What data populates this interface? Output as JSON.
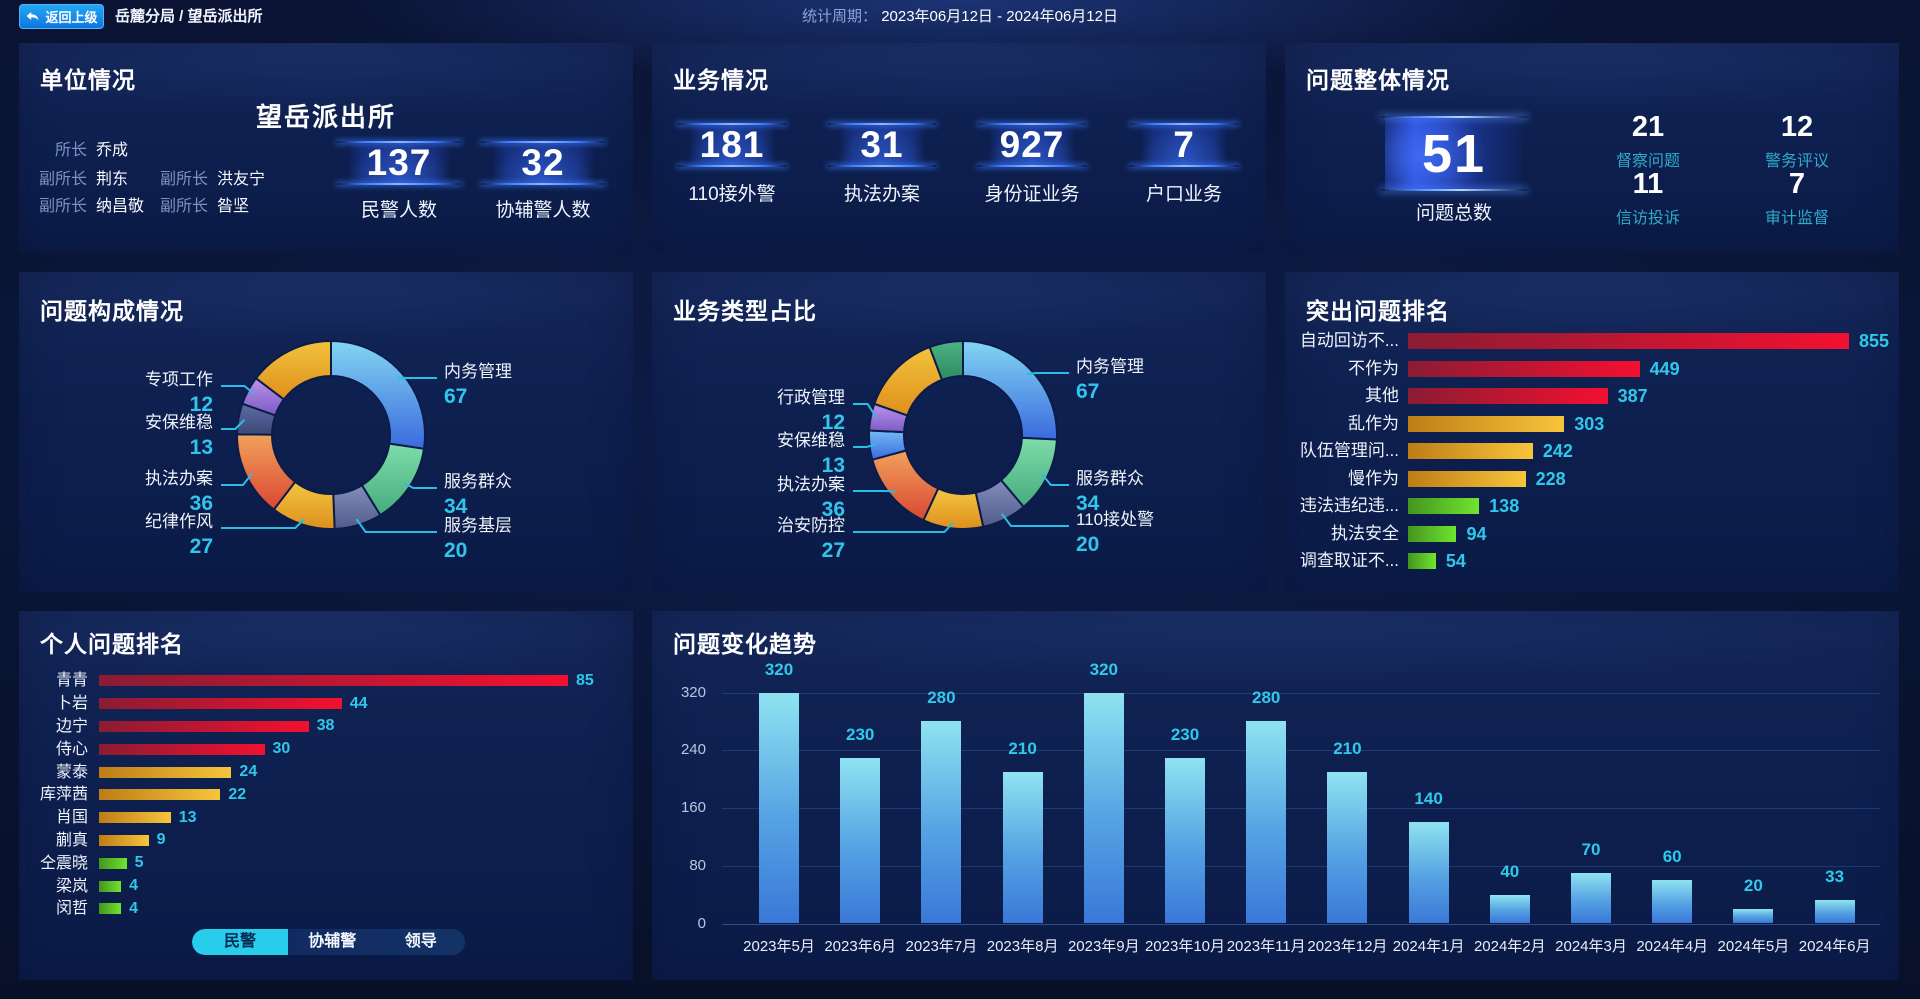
{
  "header": {
    "back_button": "返回上级",
    "breadcrumb": "岳麓分局 / 望岳派出所",
    "period_label": "统计周期：",
    "period_value": "2023年06月12日 - 2024年06月12日"
  },
  "unit_panel": {
    "title": "单位情况",
    "unit_name": "望岳派出所",
    "roster": [
      {
        "role": "所长",
        "name": "乔成"
      },
      {
        "role": "副所长",
        "name": "荆东"
      },
      {
        "role": "副所长",
        "name": "洪友宁"
      },
      {
        "role": "副所长",
        "name": "纳昌敬"
      },
      {
        "role": "副所长",
        "name": "昝坚"
      }
    ],
    "stats": [
      {
        "value": "137",
        "label": "民警人数"
      },
      {
        "value": "32",
        "label": "协辅警人数"
      }
    ]
  },
  "business_panel": {
    "title": "业务情况",
    "stats": [
      {
        "value": "181",
        "label": "110接外警"
      },
      {
        "value": "31",
        "label": "执法办案"
      },
      {
        "value": "927",
        "label": "身份证业务"
      },
      {
        "value": "7",
        "label": "户口业务"
      }
    ]
  },
  "problem_overview_panel": {
    "title": "问题整体情况",
    "total": {
      "value": "51",
      "label": "问题总数"
    },
    "substats": [
      {
        "value": "21",
        "label": "督察问题"
      },
      {
        "value": "12",
        "label": "警务评议"
      },
      {
        "value": "11",
        "label": "信访投诉"
      },
      {
        "value": "7",
        "label": "审计监督"
      }
    ]
  },
  "personal_panel_tabs": [
    {
      "label": "民警",
      "active": true
    },
    {
      "label": "协辅警",
      "active": false
    },
    {
      "label": "领导",
      "active": false
    }
  ],
  "chart_data": [
    {
      "id": "problem_composition",
      "type": "pie",
      "title": "问题构成情况",
      "legend_position": "none",
      "center": [
        312,
        163
      ],
      "outer_radius": 94,
      "inner_radius": 59,
      "segments": [
        {
          "name": "内务管理",
          "value": 67,
          "colors": [
            "#83d6f2",
            "#3a6ade"
          ],
          "side": "right",
          "labelY": 106
        },
        {
          "name": "服务群众",
          "value": 34,
          "colors": [
            "#7fdcab",
            "#45ab7d"
          ],
          "side": "right",
          "labelY": 216
        },
        {
          "name": "服务基层",
          "value": 20,
          "colors": [
            "#828dbb",
            "#525c8c"
          ],
          "side": "right",
          "labelY": 260
        },
        {
          "name": "纪律作风",
          "value": 27,
          "colors": [
            "#f4c641",
            "#de8f1d"
          ],
          "side": "left",
          "labelY": 256
        },
        {
          "name": "执法办案",
          "value": 36,
          "colors": [
            "#f2a15c",
            "#d94732"
          ],
          "side": "left",
          "labelY": 213
        },
        {
          "name": "安保维稳",
          "value": 13,
          "colors": [
            "#5d6ba6",
            "#3c4976"
          ],
          "side": "left",
          "labelY": 157
        },
        {
          "name": "专项工作",
          "value": 12,
          "colors": [
            "#bd92ea",
            "#7b5bc6"
          ],
          "side": "left",
          "labelY": 114
        },
        {
          "name": "",
          "value": 36,
          "label_hidden": true,
          "colors": [
            "#f2c33c",
            "#df8f1c"
          ]
        }
      ]
    },
    {
      "id": "business_type_share",
      "type": "pie",
      "title": "业务类型占比",
      "legend_position": "none",
      "center": [
        311,
        163
      ],
      "outer_radius": 94,
      "inner_radius": 59,
      "segments": [
        {
          "name": "内务管理",
          "value": 67,
          "colors": [
            "#83d6f2",
            "#3a6ade"
          ],
          "side": "right",
          "labelY": 101
        },
        {
          "name": "服务群众",
          "value": 34,
          "colors": [
            "#7fdcab",
            "#45ab7d"
          ],
          "side": "right",
          "labelY": 213
        },
        {
          "name": "110接处警",
          "value": 20,
          "colors": [
            "#828dbb",
            "#525c8c"
          ],
          "side": "right",
          "labelY": 254
        },
        {
          "name": "治安防控",
          "value": 27,
          "colors": [
            "#f4c641",
            "#de8f1d"
          ],
          "side": "left",
          "labelY": 260
        },
        {
          "name": "执法办案",
          "value": 36,
          "colors": [
            "#f2a15c",
            "#d94732"
          ],
          "side": "left",
          "labelY": 219
        },
        {
          "name": "安保维稳",
          "value": 13,
          "colors": [
            "#74bbf4",
            "#3a6ade"
          ],
          "side": "left",
          "labelY": 175
        },
        {
          "name": "行政管理",
          "value": 12,
          "colors": [
            "#bd92ea",
            "#7b5bc6"
          ],
          "side": "left",
          "labelY": 132
        },
        {
          "name": "",
          "value": 36,
          "label_hidden": true,
          "colors": [
            "#f2c33c",
            "#df8f1c"
          ]
        },
        {
          "name": "",
          "value": 15,
          "label_hidden": true,
          "colors": [
            "#4bb183",
            "#2e8c61"
          ]
        }
      ]
    },
    {
      "id": "prominent_problem_ranking",
      "type": "bar",
      "orientation": "horizontal",
      "title": "突出问题排名",
      "categories": [
        "自动回访不...",
        "不作为",
        "其他",
        "乱作为",
        "队伍管理问...",
        "慢作为",
        "违法违纪违...",
        "执法安全",
        "调查取证不..."
      ],
      "values": [
        855,
        449,
        387,
        303,
        242,
        228,
        138,
        94,
        54
      ],
      "color_groups": [
        "red",
        "red",
        "red",
        "amber",
        "amber",
        "amber",
        "green",
        "green",
        "green"
      ],
      "xlim": [
        0,
        880
      ]
    },
    {
      "id": "personal_problem_ranking",
      "type": "bar",
      "orientation": "horizontal",
      "title": "个人问题排名",
      "categories": [
        "青青",
        "卜岩",
        "边宁",
        "侍心",
        "蒙泰",
        "库萍茜",
        "肖国",
        "蒯真",
        "仝震晓",
        "梁岚",
        "闵哲"
      ],
      "values": [
        85,
        44,
        38,
        30,
        24,
        22,
        13,
        9,
        5,
        4,
        4
      ],
      "color_groups": [
        "red",
        "red",
        "red",
        "red",
        "amber",
        "amber",
        "amber",
        "amber",
        "green",
        "green",
        "green"
      ],
      "xlim": [
        0,
        97
      ]
    },
    {
      "id": "problem_trend",
      "type": "bar",
      "orientation": "vertical",
      "title": "问题变化趋势",
      "categories": [
        "2023年5月",
        "2023年6月",
        "2023年7月",
        "2023年8月",
        "2023年9月",
        "2023年10月",
        "2023年11月",
        "2023年12月",
        "2024年1月",
        "2024年2月",
        "2024年3月",
        "2024年4月",
        "2024年5月",
        "2024年6月"
      ],
      "values": [
        320,
        230,
        280,
        210,
        320,
        230,
        280,
        210,
        140,
        40,
        70,
        60,
        20,
        33
      ],
      "ylabel_ticks": [
        0,
        80,
        160,
        240,
        320
      ],
      "ylim": [
        0,
        320
      ],
      "grid": true
    }
  ],
  "colors": {
    "accent_cyan": "#2fc8ea",
    "sub_label_teal": "#2fa9c9",
    "bar_red": [
      "#8a1c33",
      "#f31030"
    ],
    "bar_amber": [
      "#bd7d16",
      "#f7c53a"
    ],
    "bar_green": [
      "#44951f",
      "#70e42f"
    ],
    "trend_bar": [
      "#8fe3f0",
      "#3a78d8"
    ],
    "leader_line": "#2abde6",
    "panel_bg": "#0e2050",
    "active_tab": "#29cdec"
  }
}
